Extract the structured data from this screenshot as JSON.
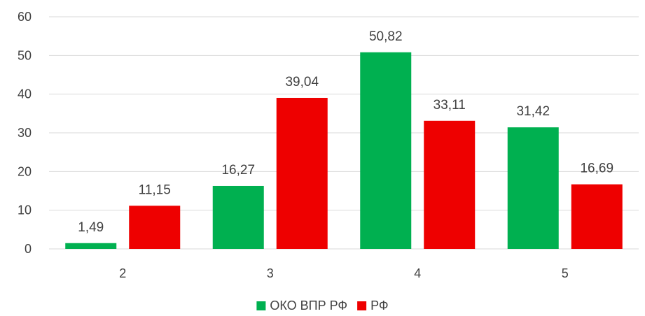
{
  "chart_data": {
    "type": "bar",
    "categories": [
      "2",
      "3",
      "4",
      "5"
    ],
    "series": [
      {
        "name": "ОКО ВПР РФ",
        "color": "#00B050",
        "values": [
          1.49,
          16.27,
          50.82,
          31.42
        ],
        "labels": [
          "1,49",
          "16,27",
          "50,82",
          "31,42"
        ]
      },
      {
        "name": "РФ",
        "color": "#EE0000",
        "values": [
          11.15,
          39.04,
          33.11,
          16.69
        ],
        "labels": [
          "11,15",
          "39,04",
          "33,11",
          "16,69"
        ]
      }
    ],
    "ylim": [
      0,
      60
    ],
    "yticks": [
      0,
      10,
      20,
      30,
      40,
      50,
      60
    ],
    "grid": true,
    "gridColor": "#D9D9D9",
    "legend": "bottom-center",
    "title": "",
    "xlabel": "",
    "ylabel": ""
  }
}
